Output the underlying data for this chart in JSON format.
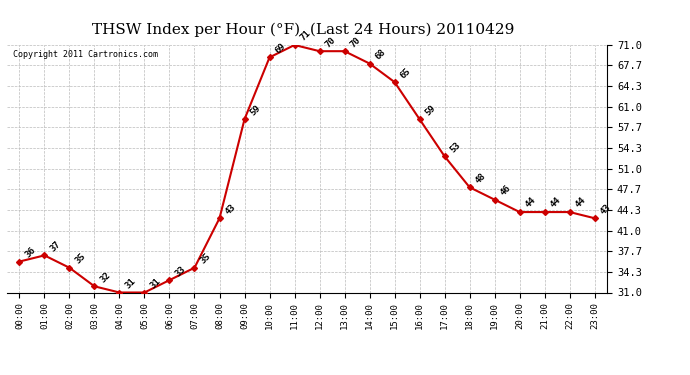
{
  "title": "THSW Index per Hour (°F)  (Last 24 Hours) 20110429",
  "copyright": "Copyright 2011 Cartronics.com",
  "hours": [
    0,
    1,
    2,
    3,
    4,
    5,
    6,
    7,
    8,
    9,
    10,
    11,
    12,
    13,
    14,
    15,
    16,
    17,
    18,
    19,
    20,
    21,
    22,
    23
  ],
  "values": [
    36,
    37,
    35,
    32,
    31,
    31,
    33,
    35,
    43,
    59,
    69,
    71,
    70,
    70,
    68,
    65,
    59,
    53,
    48,
    46,
    44,
    44,
    44,
    43
  ],
  "x_labels": [
    "00:00",
    "01:00",
    "02:00",
    "03:00",
    "04:00",
    "05:00",
    "06:00",
    "07:00",
    "08:00",
    "09:00",
    "10:00",
    "11:00",
    "12:00",
    "13:00",
    "14:00",
    "15:00",
    "16:00",
    "17:00",
    "18:00",
    "19:00",
    "20:00",
    "21:00",
    "22:00",
    "23:00"
  ],
  "y_ticks": [
    31.0,
    34.3,
    37.7,
    41.0,
    44.3,
    47.7,
    51.0,
    54.3,
    57.7,
    61.0,
    64.3,
    67.7,
    71.0
  ],
  "ylim": [
    31.0,
    71.0
  ],
  "line_color": "#cc0000",
  "marker_color": "#cc0000",
  "bg_color": "#ffffff",
  "grid_color": "#bbbbbb",
  "title_fontsize": 11,
  "annotation_fontsize": 6.5
}
